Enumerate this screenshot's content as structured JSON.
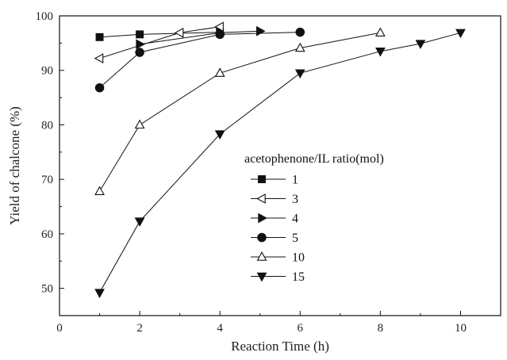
{
  "chart_data": {
    "type": "line",
    "title": "",
    "xlabel": "Reaction Time (h)",
    "ylabel": "Yield of chalcone (%)",
    "xlim": [
      0,
      11
    ],
    "ylim": [
      45,
      100
    ],
    "xticks": [
      0,
      2,
      4,
      6,
      8,
      10
    ],
    "yticks": [
      50,
      60,
      70,
      80,
      90,
      100
    ],
    "grid": false,
    "legend": {
      "title": "acetophenone/IL ratio(mol)",
      "placement": "center-right"
    },
    "series": [
      {
        "name": "1",
        "marker": "square-filled",
        "x": [
          1,
          2,
          4
        ],
        "y": [
          96.1,
          96.6,
          97.0
        ]
      },
      {
        "name": "3",
        "marker": "triangle-left-open",
        "x": [
          1,
          3,
          4
        ],
        "y": [
          92.2,
          96.9,
          98.0
        ]
      },
      {
        "name": "4",
        "marker": "triangle-right-filled",
        "x": [
          2,
          4,
          5
        ],
        "y": [
          94.8,
          96.9,
          97.2
        ]
      },
      {
        "name": "5",
        "marker": "circle-filled",
        "x": [
          1,
          2,
          4,
          6
        ],
        "y": [
          86.8,
          93.3,
          96.6,
          97.0
        ]
      },
      {
        "name": "10",
        "marker": "triangle-up-open",
        "x": [
          1,
          2,
          4,
          6,
          8
        ],
        "y": [
          67.8,
          80.0,
          89.5,
          94.1,
          96.9
        ]
      },
      {
        "name": "15",
        "marker": "triangle-down-filled",
        "x": [
          1,
          2,
          4,
          6,
          8,
          9,
          10
        ],
        "y": [
          49.2,
          62.3,
          78.3,
          89.5,
          93.5,
          94.9,
          96.9
        ]
      }
    ]
  }
}
